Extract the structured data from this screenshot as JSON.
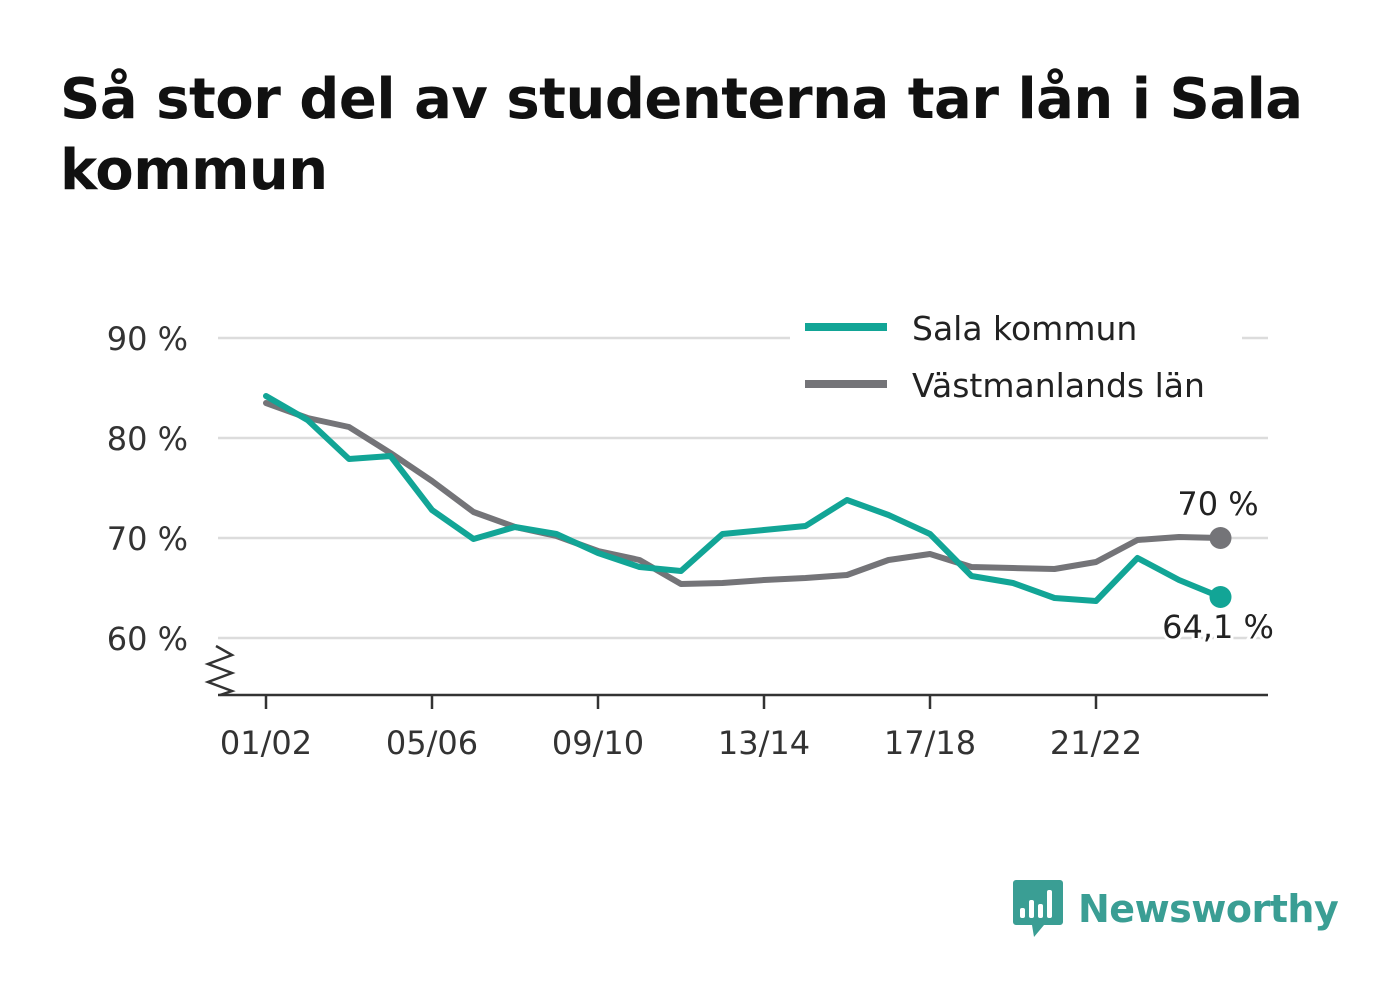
{
  "title": "Så stor del av studenterna tar lån i Sala kommun",
  "brand": {
    "name": "Newsworthy",
    "color": "#3a9e94"
  },
  "chart_data": {
    "type": "line",
    "x": [
      "01/02",
      "02/03",
      "03/04",
      "04/05",
      "05/06",
      "06/07",
      "07/08",
      "08/09",
      "09/10",
      "10/11",
      "11/12",
      "12/13",
      "13/14",
      "14/15",
      "15/16",
      "16/17",
      "17/18",
      "18/19",
      "19/20",
      "20/21",
      "21/22",
      "22/23",
      "23/24",
      "24/25"
    ],
    "x_tick_labels": [
      "01/02",
      "05/06",
      "09/10",
      "13/14",
      "17/18",
      "21/22"
    ],
    "y_tick_labels": [
      "90 %",
      "80 %",
      "70 %",
      "60 %"
    ],
    "y_ticks": [
      90,
      80,
      70,
      60
    ],
    "ylim": [
      54.3,
      90
    ],
    "grid": true,
    "legend_position": "top-right",
    "series": [
      {
        "name": "Sala kommun",
        "color": "#12a596",
        "values": [
          84.2,
          81.8,
          77.9,
          78.2,
          72.8,
          69.9,
          71.1,
          70.4,
          68.5,
          67.1,
          66.7,
          70.4,
          70.8,
          71.2,
          73.8,
          72.3,
          70.4,
          66.2,
          65.5,
          64.0,
          63.7,
          68.0,
          65.8,
          64.1
        ],
        "end_label": "64,1 %"
      },
      {
        "name": "Västmanlands län",
        "color": "#747478",
        "values": [
          83.5,
          82.0,
          81.1,
          78.5,
          75.7,
          72.6,
          71.1,
          70.2,
          68.7,
          67.8,
          65.4,
          65.5,
          65.8,
          66.0,
          66.3,
          67.8,
          68.4,
          67.1,
          67.0,
          66.9,
          67.6,
          69.8,
          70.1,
          70.0
        ],
        "end_label": "70 %"
      }
    ]
  }
}
